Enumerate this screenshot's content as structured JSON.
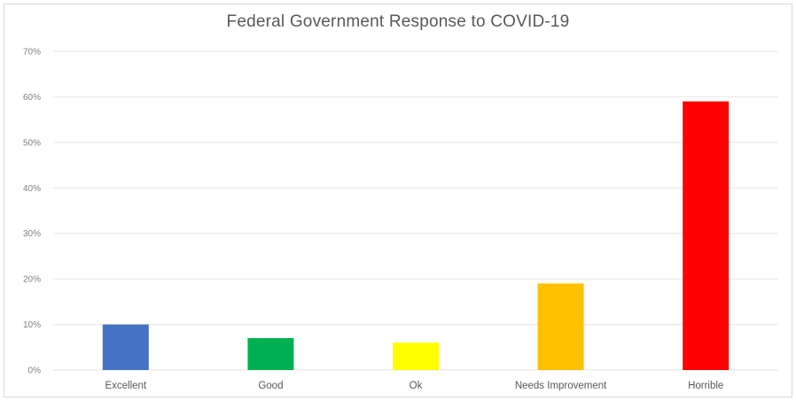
{
  "chart_data": {
    "type": "bar",
    "title": "Federal Government Response to COVID-19",
    "xlabel": "",
    "ylabel": "",
    "categories": [
      "Excellent",
      "Good",
      "Ok",
      "Needs Improvement",
      "Horrible"
    ],
    "values": [
      0.1,
      0.07,
      0.06,
      0.19,
      0.59
    ],
    "colors": [
      "#4472c4",
      "#00b050",
      "#ffff00",
      "#ffc000",
      "#ff0000"
    ],
    "ylim": [
      0,
      0.7
    ],
    "yticks": [
      0,
      0.1,
      0.2,
      0.3,
      0.4,
      0.5,
      0.6,
      0.7
    ],
    "ytick_labels": [
      "0%",
      "10%",
      "20%",
      "30%",
      "40%",
      "50%",
      "60%",
      "70%"
    ],
    "grid": true,
    "legend": "none"
  }
}
